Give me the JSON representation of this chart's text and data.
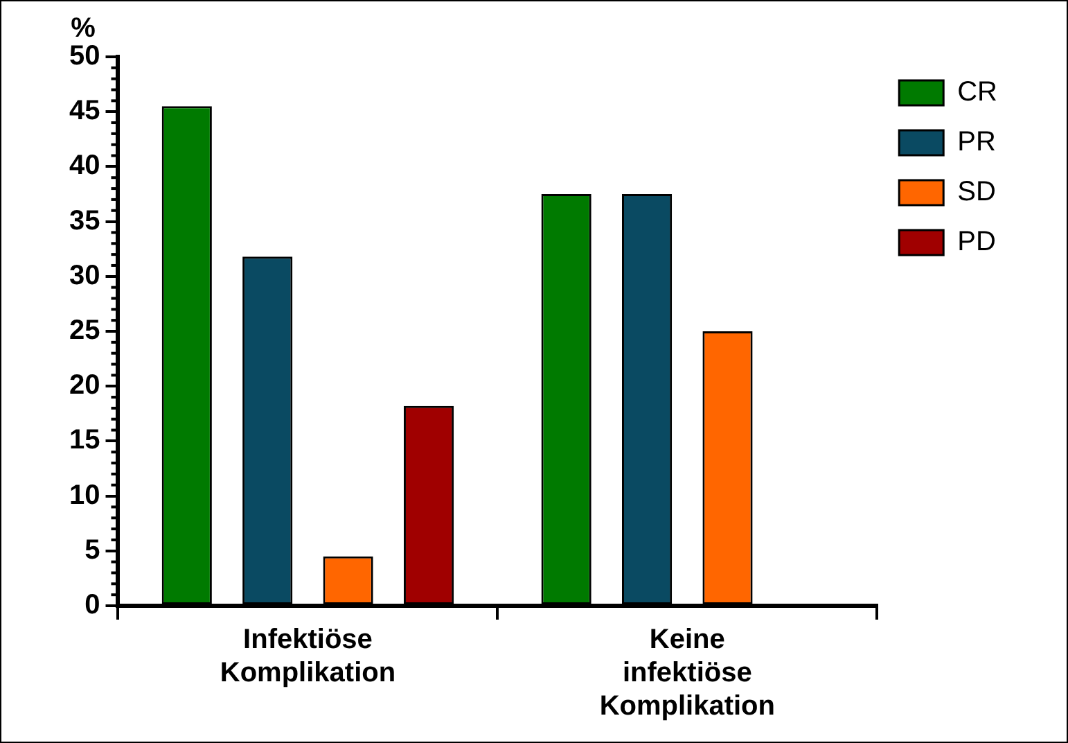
{
  "chart_data": {
    "type": "bar",
    "ylabel": "%",
    "categories": [
      "Infektiöse Komplikation",
      "Keine infektiöse Komplikation"
    ],
    "series": [
      {
        "name": "CR",
        "color": "#007a00",
        "values": [
          45.5,
          37.5
        ]
      },
      {
        "name": "PR",
        "color": "#0a4a62",
        "values": [
          31.8,
          37.5
        ]
      },
      {
        "name": "SD",
        "color": "#ff6600",
        "values": [
          4.5,
          25
        ]
      },
      {
        "name": "PD",
        "color": "#a00000",
        "values": [
          18.2,
          null
        ]
      }
    ],
    "ylim": [
      0,
      50
    ],
    "yticks": [
      0,
      5,
      10,
      15,
      20,
      25,
      30,
      35,
      40,
      45,
      50
    ],
    "grid": false,
    "legend": "right"
  }
}
